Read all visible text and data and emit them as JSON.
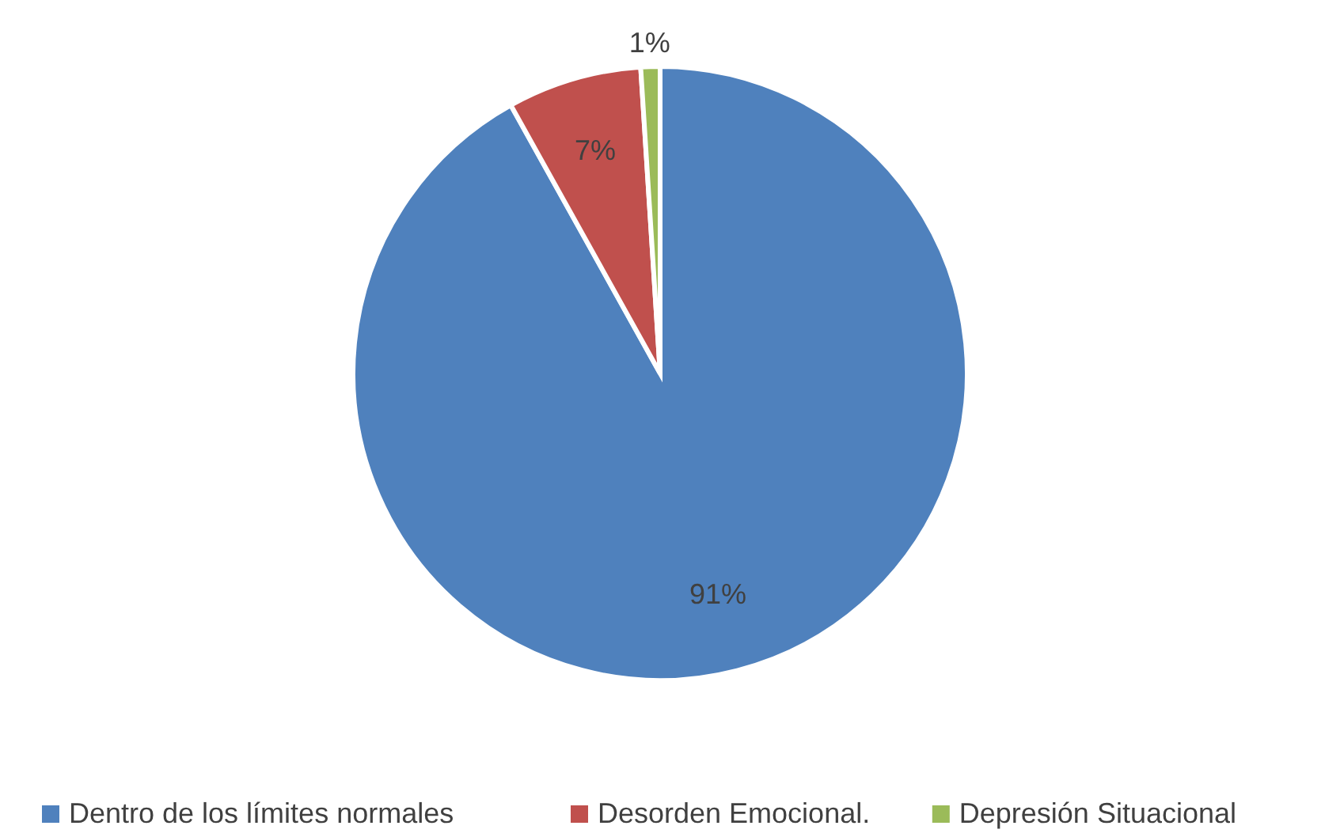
{
  "chart_data": {
    "type": "pie",
    "categories": [
      "Dentro de los límites normales",
      "Desorden Emocional.",
      "Depresión Situacional"
    ],
    "values": [
      91,
      7,
      1
    ],
    "colors": [
      "#4f81bd",
      "#c0504d",
      "#9bbb59"
    ],
    "value_labels": [
      "91%",
      "7%",
      "1%"
    ],
    "legend": "bottom"
  }
}
